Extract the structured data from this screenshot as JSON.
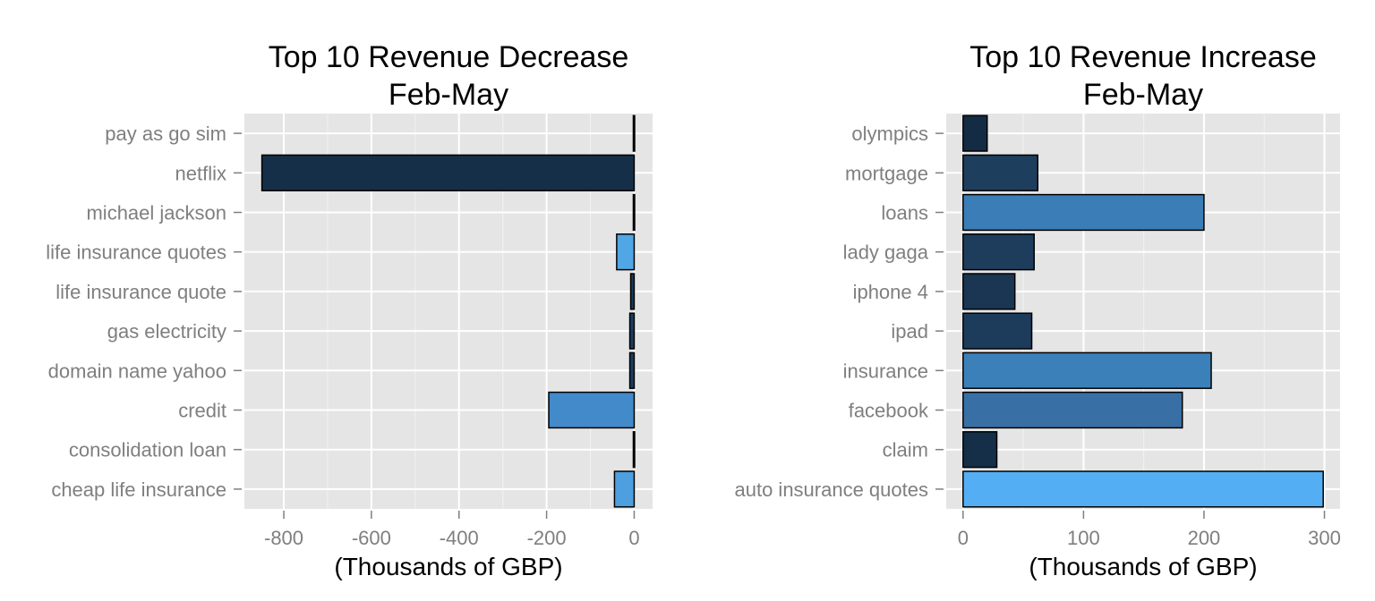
{
  "chart_data": [
    {
      "type": "bar",
      "orientation": "horizontal",
      "title": [
        "Top 10 Revenue Decrease",
        "Feb-May"
      ],
      "xlabel": "(Thousands of GBP)",
      "ylabel": "",
      "categories": [
        "pay as go sim",
        "netflix",
        "michael jackson",
        "life insurance quotes",
        "life insurance quote",
        "gas electricity",
        "domain name yahoo",
        "credit",
        "consolidation loan",
        "cheap life insurance"
      ],
      "values": [
        -2,
        -850,
        -2,
        -40,
        -8,
        -10,
        -10,
        -195,
        -2,
        -45
      ],
      "colors": [
        "#132b43",
        "#162f48",
        "#132b43",
        "#51a6e6",
        "#1c3b5a",
        "#1e3e5f",
        "#1e3e5f",
        "#428ac9",
        "#132b43",
        "#4d9fdf"
      ],
      "xlim": [
        -890,
        42
      ],
      "xticks": [
        -800,
        -600,
        -400,
        -200,
        0
      ],
      "xtick_labels": [
        "-800",
        "-600",
        "-400",
        "-200",
        "0"
      ],
      "grid": true,
      "legend": "none"
    },
    {
      "type": "bar",
      "orientation": "horizontal",
      "title": [
        "Top 10 Revenue Increase",
        "Feb-May"
      ],
      "xlabel": "(Thousands of GBP)",
      "ylabel": "",
      "categories": [
        "olympics",
        "mortgage",
        "loans",
        "lady gaga",
        "iphone 4",
        "ipad",
        "insurance",
        "facebook",
        "claim",
        "auto insurance quotes"
      ],
      "values": [
        20,
        62,
        200,
        59,
        43,
        57,
        206,
        182,
        28,
        299
      ],
      "colors": [
        "#132b43",
        "#1e3e5e",
        "#3b7db6",
        "#1e3d5d",
        "#1a3652",
        "#1d3b5b",
        "#3c80ba",
        "#3870a6",
        "#152f48",
        "#54aef3"
      ],
      "xlim": [
        -14,
        313
      ],
      "xticks": [
        0,
        100,
        200,
        300
      ],
      "xtick_labels": [
        "0",
        "100",
        "200",
        "300"
      ],
      "grid": true,
      "legend": "none"
    }
  ]
}
